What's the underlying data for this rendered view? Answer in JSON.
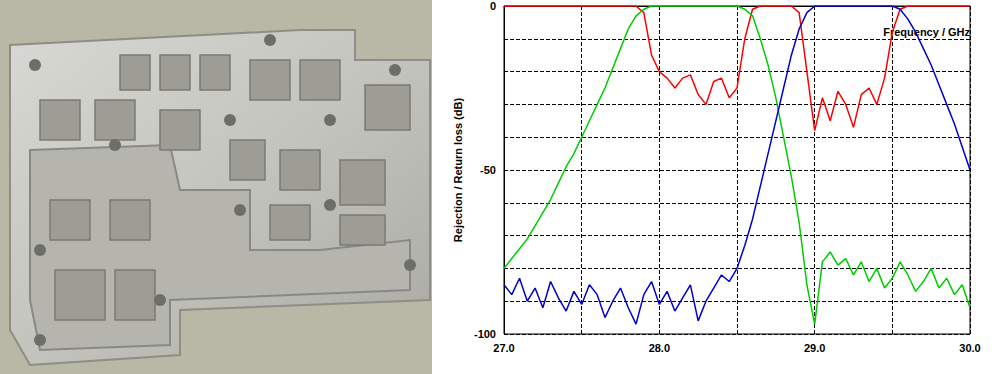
{
  "chart_data": {
    "type": "line",
    "ylabel": "Rejection / Return loss (dB)",
    "xlabel": "Frequency / GHz",
    "x": [
      27.0,
      27.05,
      27.1,
      27.15,
      27.2,
      27.25,
      27.3,
      27.35,
      27.4,
      27.45,
      27.5,
      27.55,
      27.6,
      27.65,
      27.7,
      27.75,
      27.8,
      27.85,
      27.9,
      27.95,
      28.0,
      28.05,
      28.1,
      28.15,
      28.2,
      28.25,
      28.3,
      28.35,
      28.4,
      28.45,
      28.5,
      28.55,
      28.6,
      28.65,
      28.7,
      28.75,
      28.8,
      28.85,
      28.9,
      28.95,
      29.0,
      29.05,
      29.1,
      29.15,
      29.2,
      29.25,
      29.3,
      29.35,
      29.4,
      29.45,
      29.5,
      29.55,
      29.6,
      29.65,
      29.7,
      29.75,
      29.8,
      29.85,
      29.9,
      29.95,
      30.0
    ],
    "series": [
      {
        "color": "#ff0000",
        "values": [
          0,
          0,
          0,
          0,
          0,
          0,
          0,
          0,
          0,
          0,
          0,
          0,
          0,
          0,
          0,
          0,
          0,
          0,
          -2,
          -15,
          -20,
          -22,
          -25,
          -22,
          -21,
          -27,
          -30,
          -23,
          -22,
          -28,
          -25,
          -10,
          -1,
          0,
          0,
          0,
          0,
          0,
          -2,
          -20,
          -38,
          -28,
          -35,
          -26,
          -30,
          -37,
          -27,
          -25,
          -30,
          -22,
          -8,
          -1,
          0,
          0,
          0,
          0,
          0,
          0,
          0,
          0,
          0
        ]
      },
      {
        "color": "#00cc00",
        "values": [
          -80,
          -77,
          -74,
          -71,
          -67,
          -63,
          -59,
          -54,
          -49,
          -45,
          -40,
          -35,
          -30,
          -25,
          -19,
          -13,
          -7,
          -3,
          -1,
          0,
          0,
          0,
          0,
          0,
          0,
          0,
          0,
          0,
          0,
          0,
          0,
          -1,
          -3,
          -10,
          -18,
          -28,
          -40,
          -52,
          -66,
          -85,
          -97,
          -78,
          -75,
          -79,
          -77,
          -82,
          -78,
          -84,
          -80,
          -86,
          -83,
          -78,
          -82,
          -87,
          -84,
          -80,
          -86,
          -83,
          -88,
          -85,
          -92
        ]
      },
      {
        "color": "#0000cc",
        "values": [
          -85,
          -88,
          -83,
          -90,
          -86,
          -92,
          -84,
          -89,
          -93,
          -87,
          -91,
          -85,
          -88,
          -95,
          -90,
          -86,
          -92,
          -97,
          -88,
          -84,
          -91,
          -87,
          -93,
          -89,
          -85,
          -96,
          -90,
          -86,
          -82,
          -84,
          -80,
          -73,
          -65,
          -55,
          -45,
          -35,
          -25,
          -15,
          -7,
          -2,
          0,
          0,
          0,
          0,
          0,
          0,
          0,
          0,
          0,
          0,
          0,
          -1,
          -4,
          -8,
          -13,
          -18,
          -24,
          -30,
          -36,
          -43,
          -50
        ]
      }
    ],
    "xlim": [
      27.0,
      30.0
    ],
    "xticks": [
      {
        "value": 27,
        "label": "27.0"
      },
      {
        "value": 28,
        "label": "28.0"
      },
      {
        "value": 29,
        "label": "29.0"
      },
      {
        "value": 30,
        "label": "30.0"
      }
    ],
    "ylim": [
      -100,
      0
    ],
    "yticks": [
      -100,
      -50,
      0
    ],
    "grid": true
  }
}
